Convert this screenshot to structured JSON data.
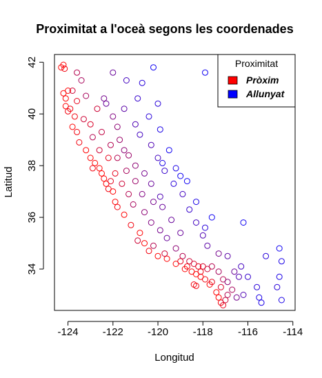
{
  "chart_data": {
    "type": "scatter",
    "title": "Proximitat a l'oceà segons les coordenades",
    "xlabel": "Longitud",
    "ylabel": "Latitud",
    "xlim": [
      -124.6,
      -113.9
    ],
    "ylim": [
      32.4,
      42.3
    ],
    "xticks": [
      "-124",
      "-122",
      "-120",
      "-118",
      "-116",
      "-114"
    ],
    "yticks": [
      "34",
      "36",
      "38",
      "40",
      "42"
    ],
    "point_style": "open-circle",
    "color_scale": "red-to-blue by distance to ocean",
    "legend": {
      "position": "top-right",
      "title": "Proximitat",
      "items": [
        {
          "label": "Pròxim",
          "color": "#ff0000"
        },
        {
          "label": "Allunyat",
          "color": "#0000ff"
        }
      ]
    },
    "points": [
      [
        -124.3,
        41.8,
        0.0
      ],
      [
        -124.2,
        41.9,
        0.0
      ],
      [
        -124.15,
        41.75,
        0.05
      ],
      [
        -124.2,
        40.8,
        0.0
      ],
      [
        -124.1,
        40.6,
        0.0
      ],
      [
        -124.0,
        40.9,
        0.0
      ],
      [
        -124.1,
        40.3,
        0.0
      ],
      [
        -124.0,
        40.1,
        0.05
      ],
      [
        -123.8,
        40.9,
        0.2
      ],
      [
        -123.6,
        41.6,
        0.3
      ],
      [
        -123.4,
        41.3,
        0.35
      ],
      [
        -123.2,
        40.7,
        0.35
      ],
      [
        -123.7,
        39.9,
        0.05
      ],
      [
        -123.8,
        39.5,
        0.0
      ],
      [
        -123.6,
        39.3,
        0.05
      ],
      [
        -123.5,
        38.9,
        0.05
      ],
      [
        -123.2,
        38.6,
        0.0
      ],
      [
        -123.0,
        38.3,
        0.0
      ],
      [
        -122.8,
        38.1,
        0.0
      ],
      [
        -122.6,
        37.9,
        0.0
      ],
      [
        -122.5,
        37.7,
        0.0
      ],
      [
        -122.4,
        37.5,
        0.0
      ],
      [
        -122.3,
        37.3,
        0.0
      ],
      [
        -122.2,
        37.1,
        0.05
      ],
      [
        -122.0,
        37.0,
        0.0
      ],
      [
        -121.9,
        36.6,
        0.0
      ],
      [
        -121.8,
        36.4,
        0.05
      ],
      [
        -121.5,
        36.1,
        0.0
      ],
      [
        -121.2,
        35.7,
        0.05
      ],
      [
        -120.8,
        35.4,
        0.0
      ],
      [
        -120.6,
        35.0,
        0.0
      ],
      [
        -120.4,
        34.7,
        0.05
      ],
      [
        -120.0,
        34.5,
        0.0
      ],
      [
        -119.6,
        34.4,
        0.0
      ],
      [
        -119.2,
        34.2,
        0.0
      ],
      [
        -118.8,
        34.0,
        0.0
      ],
      [
        -118.5,
        33.9,
        0.0
      ],
      [
        -118.3,
        33.8,
        0.0
      ],
      [
        -118.1,
        33.7,
        0.0
      ],
      [
        -117.9,
        33.6,
        0.05
      ],
      [
        -117.7,
        33.4,
        0.0
      ],
      [
        -117.4,
        33.1,
        0.0
      ],
      [
        -117.3,
        32.9,
        0.0
      ],
      [
        -117.2,
        32.7,
        0.05
      ],
      [
        -117.1,
        32.6,
        0.1
      ],
      [
        -117.0,
        32.8,
        0.2
      ],
      [
        -116.9,
        33.0,
        0.3
      ],
      [
        -116.7,
        33.2,
        0.35
      ],
      [
        -117.1,
        33.6,
        0.3
      ],
      [
        -117.3,
        33.9,
        0.35
      ],
      [
        -117.6,
        34.1,
        0.3
      ],
      [
        -117.8,
        34.0,
        0.2
      ],
      [
        -118.0,
        34.1,
        0.15
      ],
      [
        -118.2,
        34.1,
        0.1
      ],
      [
        -118.4,
        34.2,
        0.15
      ],
      [
        -118.6,
        34.3,
        0.2
      ],
      [
        -118.9,
        34.5,
        0.3
      ],
      [
        -119.2,
        34.8,
        0.45
      ],
      [
        -119.0,
        35.4,
        0.6
      ],
      [
        -119.4,
        35.9,
        0.6
      ],
      [
        -119.8,
        36.4,
        0.6
      ],
      [
        -119.9,
        36.8,
        0.7
      ],
      [
        -120.3,
        37.3,
        0.6
      ],
      [
        -120.6,
        37.7,
        0.55
      ],
      [
        -121.0,
        38.0,
        0.45
      ],
      [
        -121.3,
        38.4,
        0.4
      ],
      [
        -121.5,
        38.6,
        0.45
      ],
      [
        -121.7,
        39.0,
        0.4
      ],
      [
        -121.8,
        39.5,
        0.45
      ],
      [
        -122.0,
        39.9,
        0.5
      ],
      [
        -122.3,
        40.4,
        0.6
      ],
      [
        -122.4,
        40.6,
        0.55
      ],
      [
        -121.5,
        40.2,
        0.65
      ],
      [
        -121.0,
        39.6,
        0.7
      ],
      [
        -120.8,
        39.2,
        0.75
      ],
      [
        -120.3,
        38.8,
        0.7
      ],
      [
        -120.0,
        38.3,
        0.75
      ],
      [
        -119.7,
        37.8,
        0.8
      ],
      [
        -119.3,
        37.3,
        0.85
      ],
      [
        -118.9,
        36.9,
        0.75
      ],
      [
        -118.6,
        36.3,
        0.8
      ],
      [
        -118.3,
        35.8,
        0.75
      ],
      [
        -118.0,
        35.3,
        0.7
      ],
      [
        -117.8,
        34.9,
        0.65
      ],
      [
        -117.3,
        34.6,
        0.55
      ],
      [
        -116.9,
        34.5,
        0.65
      ],
      [
        -116.3,
        34.1,
        0.75
      ],
      [
        -116.0,
        33.7,
        0.8
      ],
      [
        -115.6,
        33.3,
        0.85
      ],
      [
        -115.5,
        32.9,
        0.9
      ],
      [
        -115.4,
        32.7,
        0.9
      ],
      [
        -116.4,
        33.7,
        0.7
      ],
      [
        -116.6,
        33.9,
        0.6
      ],
      [
        -115.2,
        34.5,
        0.85
      ],
      [
        -114.6,
        34.8,
        0.95
      ],
      [
        -114.5,
        34.3,
        0.9
      ],
      [
        -114.6,
        33.7,
        0.9
      ],
      [
        -114.7,
        33.3,
        0.85
      ],
      [
        -114.5,
        32.8,
        0.9
      ],
      [
        -120.7,
        41.2,
        0.85
      ],
      [
        -120.2,
        41.8,
        0.95
      ],
      [
        -121.4,
        41.3,
        0.75
      ],
      [
        -122.0,
        41.6,
        0.6
      ],
      [
        -120.0,
        40.4,
        0.85
      ],
      [
        -119.9,
        39.4,
        0.9
      ],
      [
        -119.5,
        38.6,
        0.95
      ],
      [
        -119.2,
        37.9,
        0.9
      ],
      [
        -118.7,
        37.4,
        0.95
      ],
      [
        -118.3,
        36.6,
        0.9
      ],
      [
        -117.9,
        35.6,
        0.85
      ],
      [
        -117.6,
        36.0,
        0.95
      ],
      [
        -116.2,
        35.8,
        0.95
      ],
      [
        -117.9,
        41.6,
        0.95
      ],
      [
        -120.9,
        40.6,
        0.8
      ],
      [
        -120.4,
        39.9,
        0.85
      ],
      [
        -119.8,
        38.1,
        0.9
      ],
      [
        -119.0,
        37.6,
        0.95
      ],
      [
        -122.9,
        39.1,
        0.3
      ],
      [
        -122.6,
        38.6,
        0.2
      ],
      [
        -122.2,
        38.3,
        0.1
      ],
      [
        -121.9,
        37.7,
        0.1
      ],
      [
        -121.6,
        37.3,
        0.2
      ],
      [
        -121.3,
        36.9,
        0.3
      ],
      [
        -121.1,
        36.5,
        0.35
      ],
      [
        -120.6,
        36.2,
        0.45
      ],
      [
        -120.3,
        35.8,
        0.5
      ],
      [
        -119.9,
        35.5,
        0.55
      ],
      [
        -119.6,
        35.2,
        0.6
      ],
      [
        -122.7,
        40.2,
        0.2
      ],
      [
        -123.0,
        39.6,
        0.15
      ],
      [
        -122.5,
        39.3,
        0.25
      ],
      [
        -122.1,
        38.8,
        0.3
      ],
      [
        -121.8,
        38.3,
        0.3
      ],
      [
        -121.4,
        37.8,
        0.35
      ],
      [
        -121.0,
        37.4,
        0.4
      ],
      [
        -120.7,
        36.9,
        0.5
      ],
      [
        -120.2,
        36.6,
        0.55
      ],
      [
        -123.6,
        40.5,
        0.1
      ],
      [
        -123.9,
        40.2,
        0.05
      ],
      [
        -123.3,
        39.8,
        0.2
      ],
      [
        -122.9,
        37.9,
        0.05
      ],
      [
        -122.1,
        37.4,
        0.1
      ],
      [
        -120.9,
        35.1,
        0.2
      ],
      [
        -120.2,
        34.9,
        0.3
      ],
      [
        -119.7,
        34.6,
        0.2
      ],
      [
        -119.0,
        34.3,
        0.1
      ],
      [
        -118.7,
        34.1,
        0.05
      ],
      [
        -118.1,
        33.9,
        0.05
      ],
      [
        -117.6,
        33.5,
        0.1
      ],
      [
        -117.2,
        33.3,
        0.15
      ],
      [
        -116.9,
        33.5,
        0.45
      ],
      [
        -116.5,
        32.9,
        0.55
      ],
      [
        -116.2,
        33.0,
        0.7
      ],
      [
        -118.4,
        33.4,
        0.05
      ],
      [
        -118.3,
        33.35,
        0.05
      ]
    ]
  }
}
